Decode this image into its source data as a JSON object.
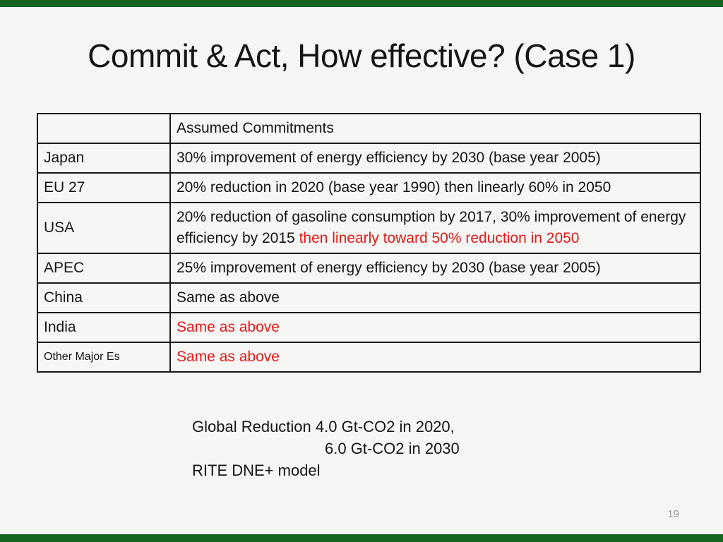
{
  "slide_title": "Commit & Act, How effective? (Case 1)",
  "page_number": "19",
  "table": {
    "header": {
      "label": "",
      "commitments": "Assumed Commitments"
    },
    "rows": [
      {
        "label": "Japan",
        "label_small": false,
        "segments": [
          {
            "text": "30% improvement of energy efficiency by 2030 (base year 2005)",
            "color": "default"
          }
        ]
      },
      {
        "label": "EU 27",
        "label_small": false,
        "segments": [
          {
            "text": "20% reduction in 2020 (base year 1990) then linearly 60% in 2050",
            "color": "default"
          }
        ]
      },
      {
        "label": "USA",
        "label_small": false,
        "segments": [
          {
            "text": "20% reduction of gasoline consumption by 2017, 30% improvement of energy efficiency by 2015 ",
            "color": "default"
          },
          {
            "text": "then linearly toward 50% reduction in 2050",
            "color": "red"
          }
        ]
      },
      {
        "label": "APEC",
        "label_small": false,
        "segments": [
          {
            "text": "25% improvement of energy efficiency by 2030 (base year 2005)",
            "color": "default"
          }
        ]
      },
      {
        "label": "China",
        "label_small": false,
        "segments": [
          {
            "text": "Same as above",
            "color": "default"
          }
        ]
      },
      {
        "label": "India",
        "label_small": false,
        "segments": [
          {
            "text": "Same as above",
            "color": "red"
          }
        ]
      },
      {
        "label": "Other Major Es",
        "label_small": true,
        "segments": [
          {
            "text": "Same as above",
            "color": "red"
          }
        ]
      }
    ]
  },
  "notes": {
    "line1": "Global Reduction 4.0 Gt-CO2 in 2020,",
    "line2": "6.0 Gt-CO2 in 2030",
    "line3": "RITE DNE+ model"
  },
  "colors": {
    "red_text": "#e21b17",
    "green_bar": "#166621",
    "body_text": "#151515",
    "page_number_gray": "#9a9a9a",
    "background": "#f6f6f5"
  }
}
